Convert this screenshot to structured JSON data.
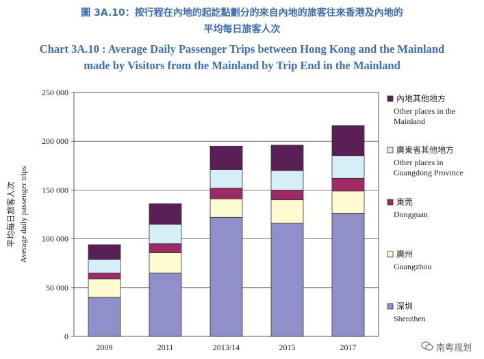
{
  "titles": {
    "cn_line1": "圖 3A.10：按行程在內地的起訖點劃分的來自內地的旅客往來香港及內地的",
    "cn_line2": "平均每日旅客人次",
    "en_line1": "Chart 3A.10 : Average Daily Passenger Trips between Hong Kong and the Mainland",
    "en_line2": "made by Visitors from the Mainland by Trip End in the Mainland"
  },
  "watermark": "南粤规划",
  "chart_data": {
    "type": "bar",
    "stacked": true,
    "categories": [
      "2009",
      "2011",
      "2013/14",
      "2015",
      "2017"
    ],
    "ylabel_cn": "平均每日旅客人次",
    "ylabel_en": "Average daily passenger trips",
    "ylim": [
      0,
      250000
    ],
    "yticks": [
      0,
      50000,
      100000,
      150000,
      200000,
      250000
    ],
    "ytick_labels": [
      "0",
      "50 000",
      "100 000",
      "150 000",
      "200 000",
      "250 000"
    ],
    "grid": true,
    "legend_position": "right",
    "series": [
      {
        "name_cn": "深圳",
        "name_en": "Shenzhen",
        "color": "#8f8fc9",
        "values": [
          40000,
          65000,
          122000,
          116000,
          126000
        ]
      },
      {
        "name_cn": "廣州",
        "name_en": "Guangzhou",
        "color": "#fffbd0",
        "values": [
          19000,
          21000,
          19000,
          24000,
          23000
        ]
      },
      {
        "name_cn": "東莞",
        "name_en": "Dongguan",
        "color": "#9e2b66",
        "values": [
          6000,
          9000,
          11000,
          10000,
          13000
        ]
      },
      {
        "name_cn": "廣東省其他地方",
        "name_en": "Other places in Guangdong Province",
        "color": "#d6eef5",
        "values": [
          14000,
          20000,
          19000,
          20000,
          23000
        ]
      },
      {
        "name_cn": "內地其他地方",
        "name_en": "Other places in the Mainland",
        "color": "#5a1f55",
        "values": [
          15000,
          21000,
          24000,
          26000,
          31000
        ]
      }
    ]
  }
}
